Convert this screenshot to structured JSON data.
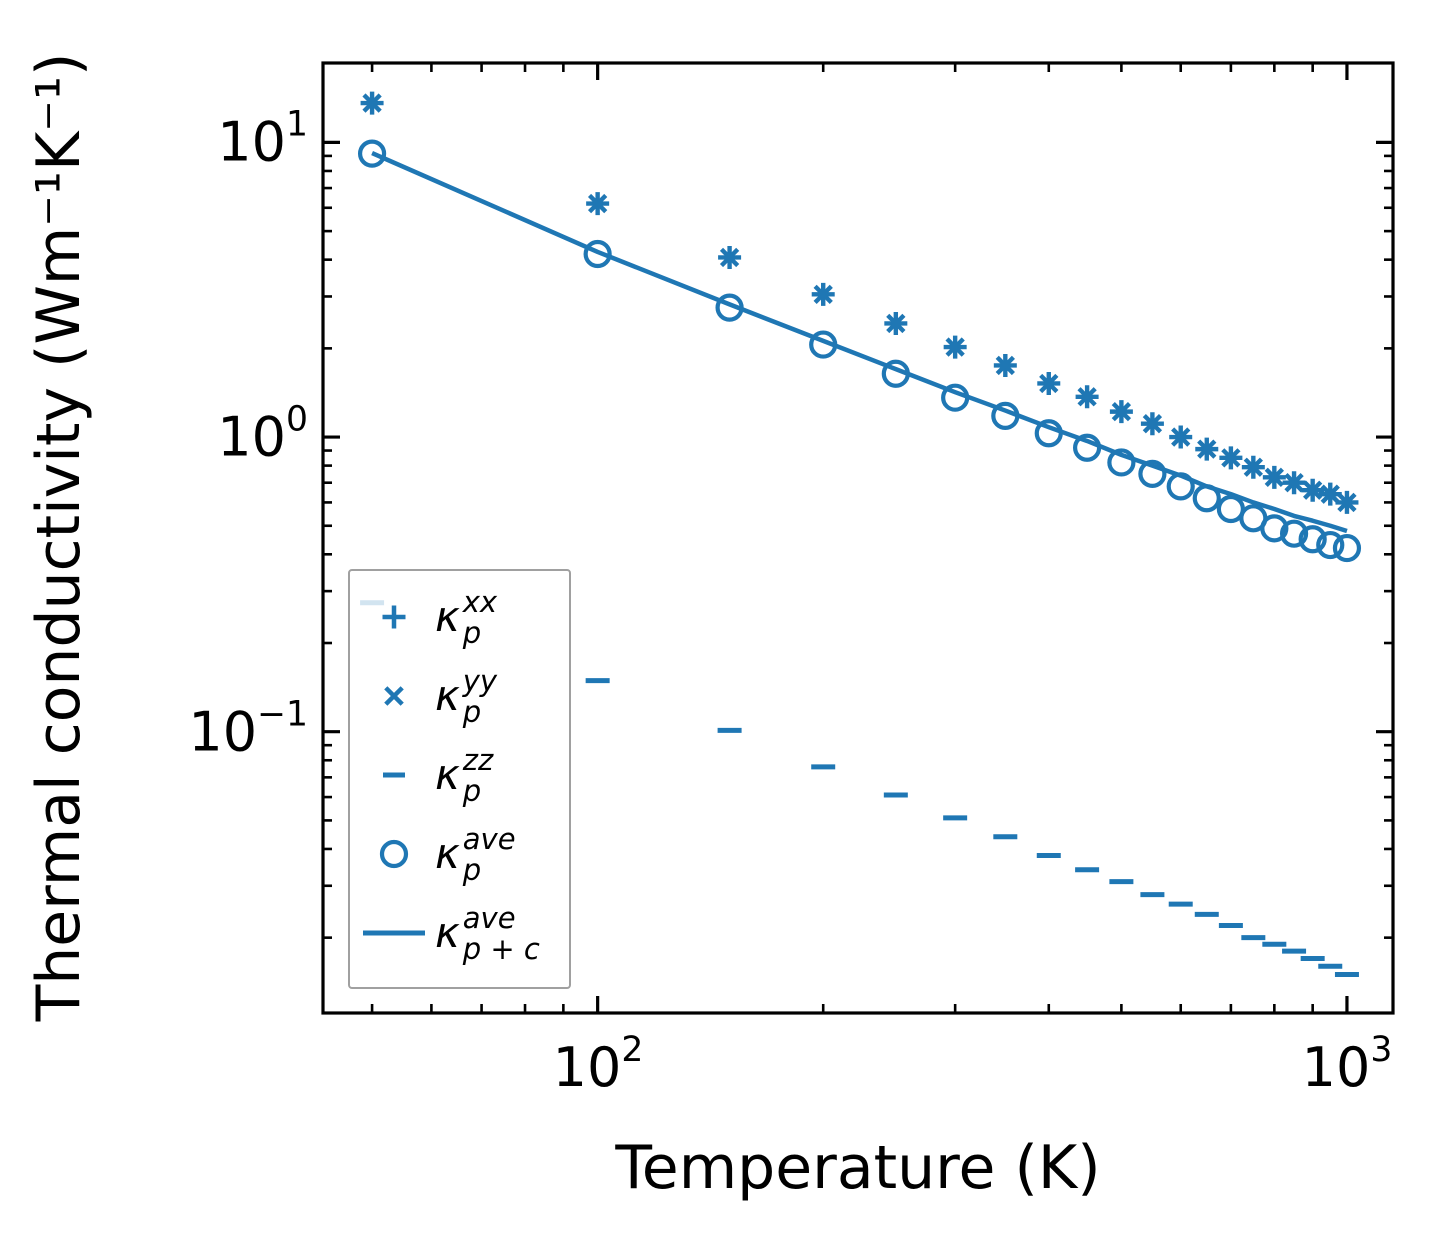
{
  "chart_data": {
    "type": "line",
    "title": "",
    "xlabel": "Temperature (K)",
    "ylabel": "Thermal conductivity (Wm⁻¹K⁻¹)",
    "x_scale": "log",
    "y_scale": "log",
    "xlim": [
      43,
      1152
    ],
    "ylim": [
      0.0111,
      18.6
    ],
    "grid": false,
    "accent_color": "#1f77b4",
    "axis_color": "#000000",
    "x": [
      50,
      100,
      150,
      200,
      250,
      300,
      350,
      400,
      450,
      500,
      550,
      600,
      650,
      700,
      750,
      800,
      850,
      900,
      950,
      1000
    ],
    "series": [
      {
        "name": "kappa_p_xx",
        "marker": "plus",
        "line": false,
        "values": [
          13.6,
          6.2,
          4.07,
          3.05,
          2.43,
          2.02,
          1.75,
          1.52,
          1.37,
          1.22,
          1.11,
          1.0,
          0.91,
          0.85,
          0.79,
          0.73,
          0.7,
          0.66,
          0.64,
          0.6
        ]
      },
      {
        "name": "kappa_p_yy",
        "marker": "cross",
        "line": false,
        "values": [
          13.6,
          6.2,
          4.07,
          3.05,
          2.43,
          2.02,
          1.75,
          1.52,
          1.37,
          1.22,
          1.11,
          1.0,
          0.91,
          0.85,
          0.79,
          0.73,
          0.7,
          0.66,
          0.64,
          0.6
        ]
      },
      {
        "name": "kappa_p_zz",
        "marker": "hline",
        "line": false,
        "values": [
          0.274,
          0.149,
          0.101,
          0.076,
          0.061,
          0.051,
          0.044,
          0.038,
          0.034,
          0.031,
          0.028,
          0.026,
          0.024,
          0.022,
          0.02,
          0.019,
          0.018,
          0.017,
          0.016,
          0.015
        ]
      },
      {
        "name": "kappa_p_ave",
        "marker": "circle",
        "line": false,
        "values": [
          9.16,
          4.18,
          2.75,
          2.06,
          1.64,
          1.36,
          1.18,
          1.03,
          0.92,
          0.82,
          0.75,
          0.68,
          0.62,
          0.57,
          0.53,
          0.49,
          0.47,
          0.45,
          0.43,
          0.42
        ]
      },
      {
        "name": "kappa_p_plus_c_ave",
        "marker": "none",
        "line": true,
        "values": [
          9.2,
          4.25,
          2.82,
          2.12,
          1.7,
          1.42,
          1.23,
          1.08,
          0.97,
          0.87,
          0.8,
          0.74,
          0.68,
          0.64,
          0.6,
          0.57,
          0.54,
          0.52,
          0.5,
          0.48
        ]
      }
    ],
    "x_major_ticks": [
      100,
      1000
    ],
    "x_minor_ticks": [
      50,
      60,
      70,
      80,
      90,
      200,
      300,
      400,
      500,
      600,
      700,
      800,
      900
    ],
    "y_major_ticks": [
      10,
      1,
      0.1
    ],
    "y_minor_ticks": [
      9,
      8,
      7,
      6,
      5,
      4,
      3,
      2,
      0.9,
      0.8,
      0.7,
      0.6,
      0.5,
      0.4,
      0.3,
      0.2,
      0.09,
      0.08,
      0.07,
      0.06,
      0.05,
      0.04,
      0.03,
      0.02
    ],
    "x_tick_labels": [
      {
        "base": "10",
        "exp": "2"
      },
      {
        "base": "10",
        "exp": "3"
      }
    ],
    "y_tick_labels": [
      {
        "base": "10",
        "exp": "1"
      },
      {
        "base": "10",
        "exp": "0"
      },
      {
        "base": "10",
        "exp": "−1"
      }
    ],
    "legend_position": "lower left"
  },
  "legend": {
    "items": [
      {
        "base": "κ",
        "sup": "xx",
        "sub": "p",
        "marker": "plus"
      },
      {
        "base": "κ",
        "sup": "yy",
        "sub": "p",
        "marker": "cross"
      },
      {
        "base": "κ",
        "sup": "zz",
        "sub": "p",
        "marker": "hline"
      },
      {
        "base": "κ",
        "sup": "ave",
        "sub": "p",
        "marker": "circle"
      },
      {
        "base": "κ",
        "sup": "ave",
        "sub": "p + c",
        "marker": "line"
      }
    ]
  }
}
